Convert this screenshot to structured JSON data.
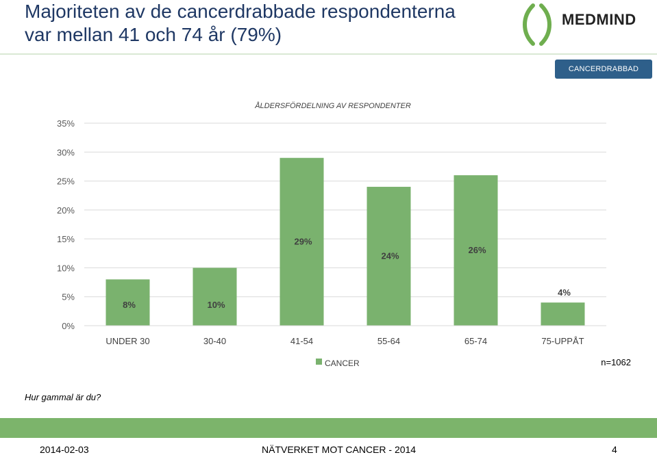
{
  "header": {
    "title_line1": "Majoriteten av de cancerdrabbade respondenterna",
    "title_line2": "var mellan 41 och 74 år (79%)",
    "logo_text": "MEDMIND",
    "badge": "CANCERDRABBAD"
  },
  "colors": {
    "bar": "#7ab26e",
    "badge": "#2e5f8a",
    "footer": "#7cb46b"
  },
  "chart_data": {
    "type": "bar",
    "title": "ÅLDERSFÖRDELNING AV RESPONDENTER",
    "categories": [
      "UNDER 30",
      "30-40",
      "41-54",
      "55-64",
      "65-74",
      "75-UPPÅT"
    ],
    "series": [
      {
        "name": "CANCER",
        "values": [
          8,
          10,
          29,
          24,
          26,
          4
        ]
      }
    ],
    "data_labels": [
      "8%",
      "10%",
      "29%",
      "24%",
      "26%",
      "4%"
    ],
    "y_ticks": [
      "0%",
      "5%",
      "10%",
      "15%",
      "20%",
      "25%",
      "30%",
      "35%"
    ],
    "ylim": [
      0,
      35
    ],
    "grid": true,
    "legend": "bottom",
    "annotation": "n=1062"
  },
  "question": "Hur gammal är du?",
  "footer": {
    "date": "2014-02-03",
    "center": "NÄTVERKET MOT CANCER - 2014",
    "page": "4"
  }
}
